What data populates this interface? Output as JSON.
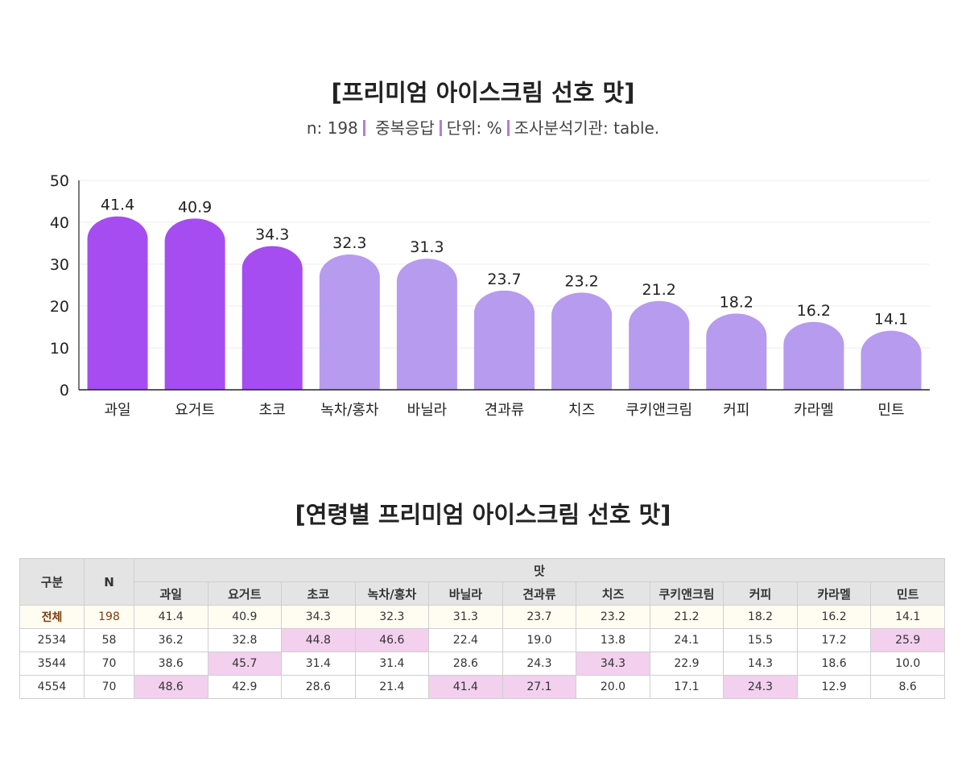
{
  "chart_title": "[프리미엄 아이스크림 선호 맛]",
  "subtitle": {
    "n": "n: 198",
    "multi": "중복응답",
    "unit": "단위: %",
    "source": "조사분석기관: table."
  },
  "colors": {
    "highlight_bar": "#a54df0",
    "normal_bar": "#b79bee",
    "cell_highlight": "#f2d0ee"
  },
  "chart_data": {
    "type": "bar",
    "categories": [
      "과일",
      "요거트",
      "초코",
      "녹차/홍차",
      "바닐라",
      "견과류",
      "치즈",
      "쿠키앤크림",
      "커피",
      "카라멜",
      "민트"
    ],
    "values": [
      41.4,
      40.9,
      34.3,
      32.3,
      31.3,
      23.7,
      23.2,
      21.2,
      18.2,
      16.2,
      14.1
    ],
    "highlighted": [
      true,
      true,
      true,
      false,
      false,
      false,
      false,
      false,
      false,
      false,
      false
    ],
    "y_ticks": [
      "0",
      "10",
      "20",
      "30",
      "40",
      "50"
    ],
    "ylim": [
      0,
      50
    ],
    "grid": true,
    "legend": "none"
  },
  "table_title": "[연령별 프리미엄 아이스크림 선호 맛]",
  "table": {
    "col_group": "구분",
    "col_n": "N",
    "col_taste": "맛",
    "headers": [
      "과일",
      "요거트",
      "초코",
      "녹차/홍차",
      "바닐라",
      "견과류",
      "치즈",
      "쿠키앤크림",
      "커피",
      "카라멜",
      "민트"
    ],
    "rows": [
      {
        "label": "전체",
        "n": "198",
        "values": [
          "41.4",
          "40.9",
          "34.3",
          "32.3",
          "31.3",
          "23.7",
          "23.2",
          "21.2",
          "18.2",
          "16.2",
          "14.1"
        ],
        "highlight": []
      },
      {
        "label": "2534",
        "n": "58",
        "values": [
          "36.2",
          "32.8",
          "44.8",
          "46.6",
          "22.4",
          "19.0",
          "13.8",
          "24.1",
          "15.5",
          "17.2",
          "25.9"
        ],
        "highlight": [
          2,
          3,
          10
        ]
      },
      {
        "label": "3544",
        "n": "70",
        "values": [
          "38.6",
          "45.7",
          "31.4",
          "31.4",
          "28.6",
          "24.3",
          "34.3",
          "22.9",
          "14.3",
          "18.6",
          "10.0"
        ],
        "highlight": [
          1,
          6
        ]
      },
      {
        "label": "4554",
        "n": "70",
        "values": [
          "48.6",
          "42.9",
          "28.6",
          "21.4",
          "41.4",
          "27.1",
          "20.0",
          "17.1",
          "24.3",
          "12.9",
          "8.6"
        ],
        "highlight": [
          0,
          4,
          5,
          8
        ]
      }
    ]
  }
}
